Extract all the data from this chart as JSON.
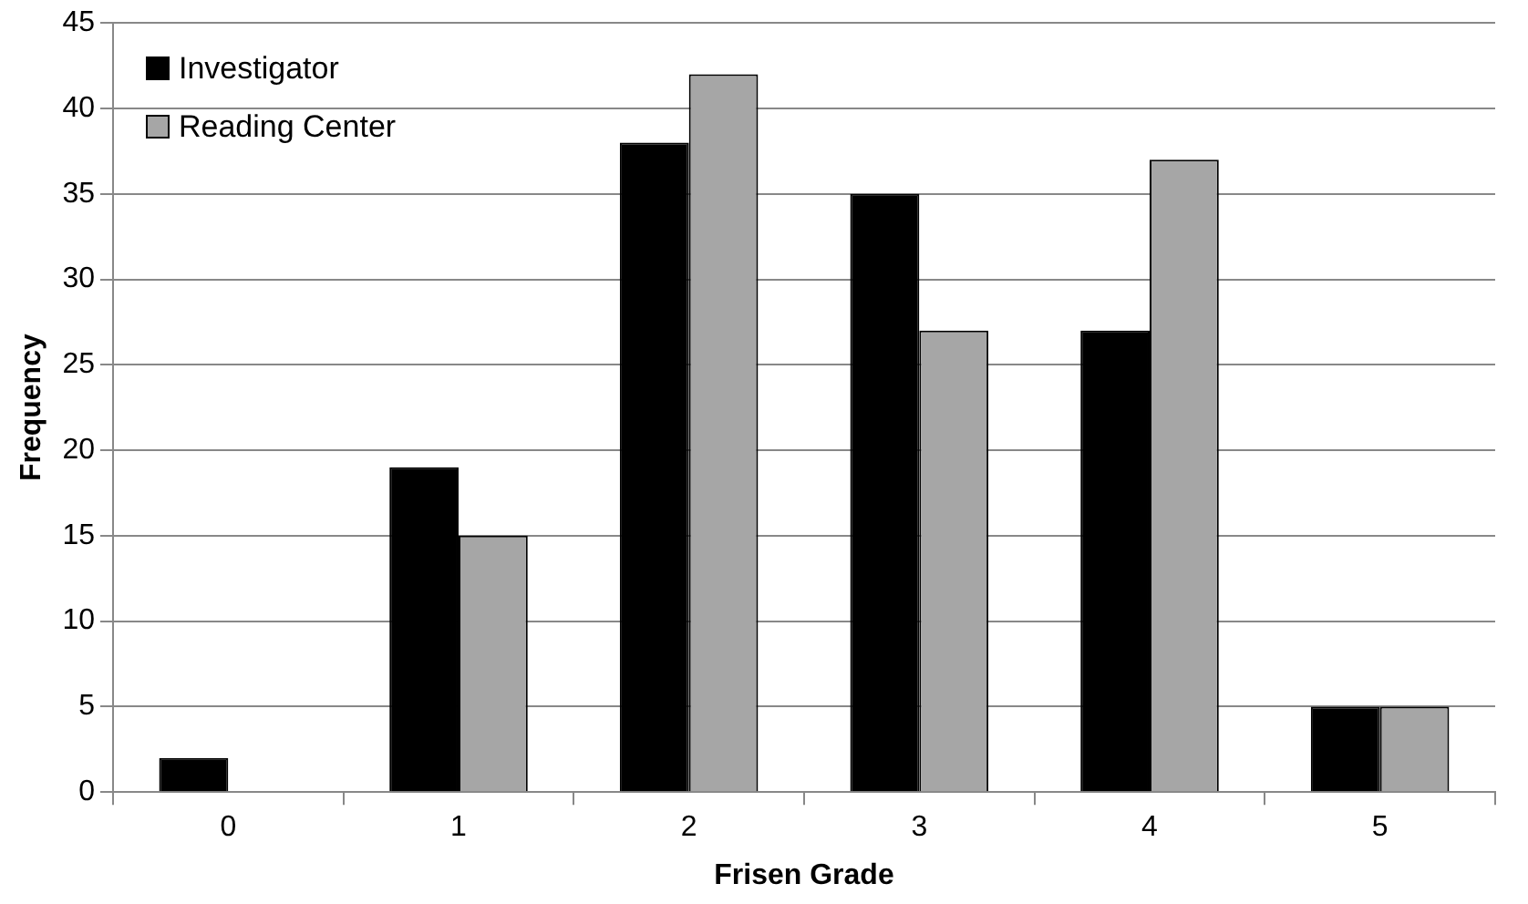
{
  "chart_data": {
    "type": "bar",
    "xlabel": "Frisen Grade",
    "ylabel": "Frequency",
    "categories": [
      "0",
      "1",
      "2",
      "3",
      "4",
      "5"
    ],
    "series": [
      {
        "name": "Investigator",
        "color": "#000000",
        "values": [
          2,
          19,
          38,
          35,
          27,
          5
        ]
      },
      {
        "name": "Reading Center",
        "color": "#a6a6a6",
        "values": [
          0,
          15,
          42,
          27,
          37,
          5
        ]
      }
    ],
    "ylim": [
      0,
      45
    ],
    "yticks": [
      0,
      5,
      10,
      15,
      20,
      25,
      30,
      35,
      40,
      45
    ],
    "grid": "y",
    "legend": "top left"
  }
}
